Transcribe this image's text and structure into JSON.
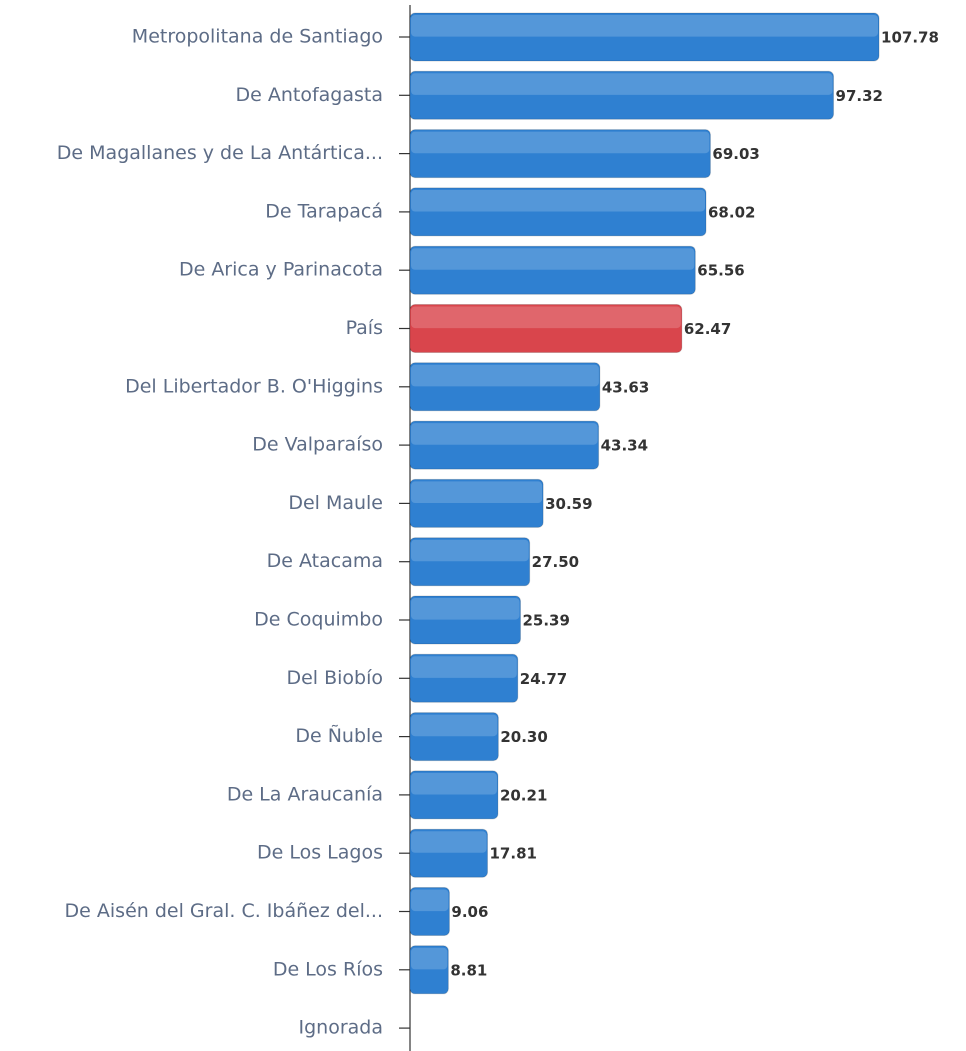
{
  "chart_data": {
    "type": "hbar",
    "categories": [
      "Metropolitana de Santiago",
      "De Antofagasta",
      "De Magallanes y de La Antártica...",
      "De Tarapacá",
      "De Arica y Parinacota",
      "País",
      "Del Libertador B. O'Higgins",
      "De Valparaíso",
      "Del Maule",
      "De Atacama",
      "De Coquimbo",
      "Del Biobío",
      "De Ñuble",
      "De La Araucanía",
      "De Los Lagos",
      "De Aisén del Gral. C. Ibáñez del...",
      "De Los Ríos",
      "Ignorada"
    ],
    "values": [
      107.78,
      97.32,
      69.03,
      68.02,
      65.56,
      62.47,
      43.63,
      43.34,
      30.59,
      27.5,
      25.39,
      24.77,
      20.3,
      20.21,
      17.81,
      9.06,
      8.81,
      null
    ],
    "value_labels": [
      "107.78",
      "97.32",
      "69.03",
      "68.02",
      "65.56",
      "62.47",
      "43.63",
      "43.34",
      "30.59",
      "27.50",
      "25.39",
      "24.77",
      "20.30",
      "20.21",
      "17.81",
      "9.06",
      "8.81",
      null
    ],
    "colors": [
      "#2f80d1",
      "#2f80d1",
      "#2f80d1",
      "#2f80d1",
      "#2f80d1",
      "#d9454c",
      "#2f80d1",
      "#2f80d1",
      "#2f80d1",
      "#2f80d1",
      "#2f80d1",
      "#2f80d1",
      "#2f80d1",
      "#2f80d1",
      "#2f80d1",
      "#2f80d1",
      "#2f80d1",
      "#2f80d1"
    ],
    "xlim": [
      0,
      108
    ]
  }
}
